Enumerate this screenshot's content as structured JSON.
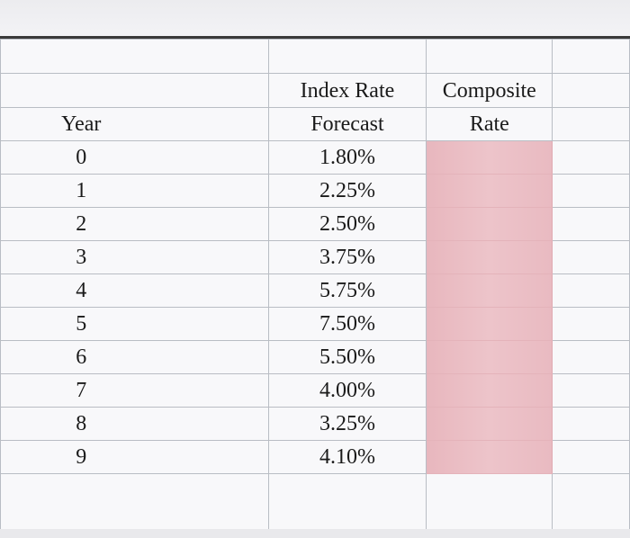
{
  "table": {
    "headers": {
      "year": "Year",
      "index_line1": "Index Rate",
      "index_line2": "Forecast",
      "composite_line1": "Composite",
      "composite_line2": "Rate"
    },
    "rows": [
      {
        "year": "0",
        "index": "1.80%",
        "composite": ""
      },
      {
        "year": "1",
        "index": "2.25%",
        "composite": ""
      },
      {
        "year": "2",
        "index": "2.50%",
        "composite": ""
      },
      {
        "year": "3",
        "index": "3.75%",
        "composite": ""
      },
      {
        "year": "4",
        "index": "5.75%",
        "composite": ""
      },
      {
        "year": "5",
        "index": "7.50%",
        "composite": ""
      },
      {
        "year": "6",
        "index": "5.50%",
        "composite": ""
      },
      {
        "year": "7",
        "index": "4.00%",
        "composite": ""
      },
      {
        "year": "8",
        "index": "3.25%",
        "composite": ""
      },
      {
        "year": "9",
        "index": "4.10%",
        "composite": ""
      }
    ]
  },
  "colors": {
    "composite_fill": "#ebbec4",
    "gridline": "#b9bdc4",
    "top_rule": "#3a3a3a"
  }
}
